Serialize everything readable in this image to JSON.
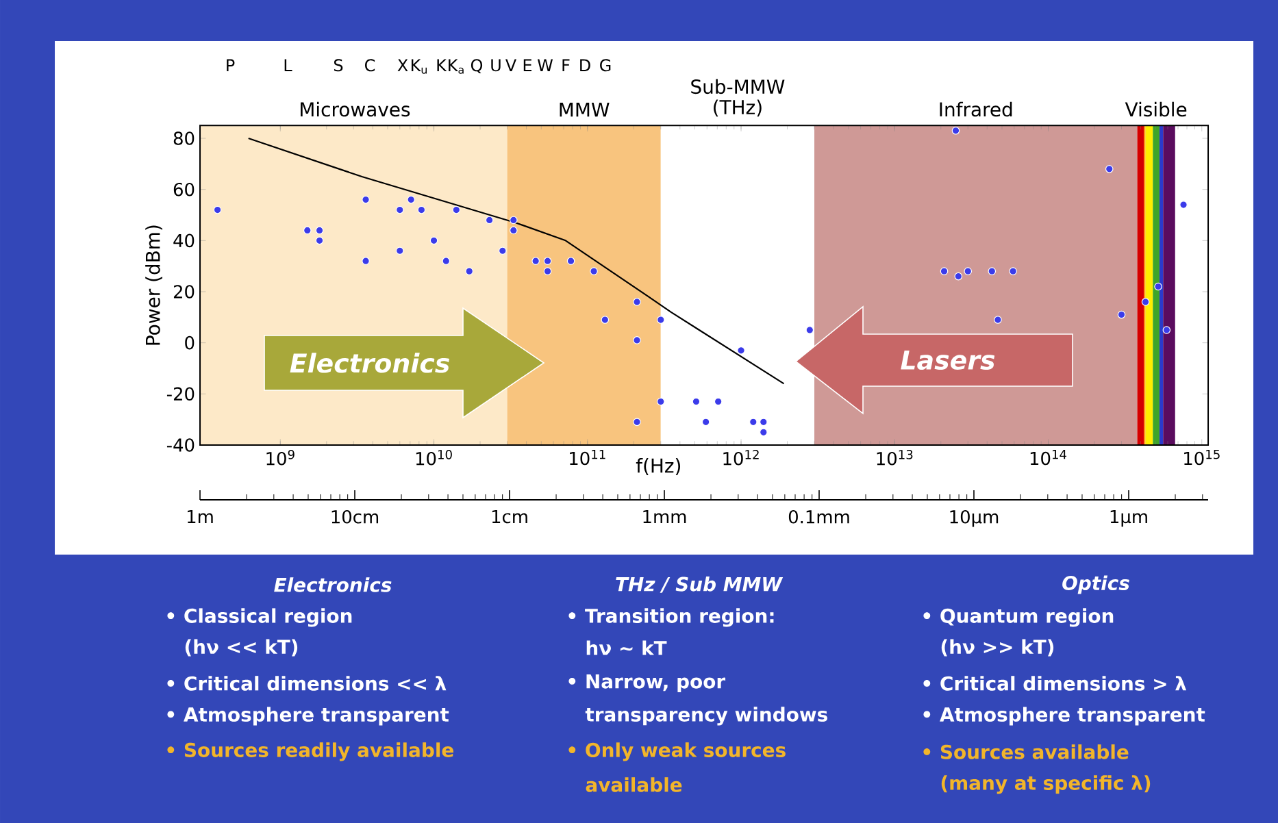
{
  "chart_data": {
    "type": "scatter",
    "xlabel": "f(Hz)",
    "ylabel": "Power (dBm)",
    "log": "x",
    "marker": "circle",
    "xlim": [
      300000000.0,
      1100000000000000.0
    ],
    "ylim": [
      -40,
      85
    ],
    "xticks": [
      {
        "value": 1000000000.0,
        "label": "10$^{9}$"
      },
      {
        "value": 10000000000.0,
        "label": "10$^{10}$"
      },
      {
        "value": 100000000000.0,
        "label": "10$^{11}$"
      },
      {
        "value": 1000000000000.0,
        "label": "10$^{12}$"
      },
      {
        "value": 10000000000000.0,
        "label": "10$^{13}$"
      },
      {
        "value": 100000000000000.0,
        "label": "10$^{14}$"
      },
      {
        "value": 1000000000000000.0,
        "label": "10$^{15}$"
      }
    ],
    "yticks": [
      -40,
      -20,
      0,
      20,
      40,
      60,
      80
    ],
    "bands": [
      {
        "axis": "x",
        "from": 300000000.0,
        "to": 30000000000.0,
        "label": "Microwaves",
        "color": "#fde9c8"
      },
      {
        "axis": "x",
        "from": 30000000000.0,
        "to": 300000000000.0,
        "label": "MMW",
        "color": "#f8c47e"
      },
      {
        "axis": "x",
        "from": 300000000000.0,
        "to": 3000000000000.0,
        "label": "Sub-MMW (THz)",
        "color": "#ffffff"
      },
      {
        "axis": "x",
        "from": 3000000000000.0,
        "to": 380000000000000.0,
        "label": "Infrared",
        "color": "#cf9996"
      },
      {
        "axis": "x",
        "from": 380000000000000.0,
        "to": 420000000000000.0,
        "color": "#d40000"
      },
      {
        "axis": "x",
        "from": 420000000000000.0,
        "to": 430000000000000.0,
        "color": "#ff8c00"
      },
      {
        "axis": "x",
        "from": 430000000000000.0,
        "to": 480000000000000.0,
        "color": "#ffee00"
      },
      {
        "axis": "x",
        "from": 480000000000000.0,
        "to": 530000000000000.0,
        "label": "Visible",
        "color": "#3fa52a"
      },
      {
        "axis": "x",
        "from": 530000000000000.0,
        "to": 560000000000000.0,
        "color": "#2a3acb"
      },
      {
        "axis": "x",
        "from": 560000000000000.0,
        "to": 670000000000000.0,
        "color": "#5a0c5e"
      }
    ],
    "series": [
      {
        "type": "scatter",
        "color": "#3b3bea",
        "x": [
          390000000.0,
          1500000000.0,
          1800000000.0,
          1800000000.0,
          3600000000.0,
          3600000000.0,
          6000000000.0,
          6000000000.0,
          7100000000.0,
          8300000000.0,
          10000000000.0,
          12000000000.0,
          14000000000.0,
          17000000000.0,
          23000000000.0,
          28000000000.0,
          33000000000.0,
          33000000000.0,
          46000000000.0,
          55000000000.0,
          55000000000.0,
          78000000000.0,
          110000000000.0,
          210000000000.0,
          130000000000.0,
          210000000000.0,
          300000000000.0,
          300000000000.0,
          210000000000.0,
          510000000000.0,
          590000000000.0,
          710000000000.0,
          1000000000000.0,
          1200000000000.0,
          1400000000000.0,
          1400000000000.0,
          2800000000000.0,
          25000000000000.0,
          21000000000000.0,
          26000000000000.0,
          30000000000000.0,
          43000000000000.0,
          59000000000000.0,
          47000000000000.0,
          250000000000000.0,
          300000000000000.0,
          430000000000000.0,
          520000000000000.0,
          590000000000000.0,
          760000000000000.0
        ],
        "values": [
          52,
          44,
          44,
          40,
          56,
          32,
          52,
          36,
          56,
          52,
          40,
          32,
          52,
          28,
          48,
          36,
          48,
          44,
          32,
          32,
          28,
          32,
          28,
          16,
          9,
          1,
          9,
          -23,
          -31,
          -23,
          -31,
          -23,
          -3,
          -31,
          -31,
          -35,
          5,
          83,
          28,
          26,
          28,
          28,
          28,
          9,
          68,
          11,
          16,
          22,
          5,
          54
        ]
      },
      {
        "type": "line",
        "color": "#000000",
        "marker": "none",
        "x": [
          620000000.0,
          3400000000.0,
          34000000000.0,
          72000000000.0,
          250000000000.0,
          350000000000.0,
          1900000000000.0
        ],
        "values": [
          80,
          65,
          47,
          40,
          18,
          12,
          -16
        ]
      }
    ],
    "annotations": [
      "Electronics",
      "Lasers",
      "P",
      "L",
      "S",
      "C",
      "X",
      "K$_{u}$",
      "K",
      "K$_{a}$",
      "Q",
      "U",
      "V",
      "E",
      "W",
      "F",
      "D",
      "G",
      "1m",
      "10cm",
      "1cm",
      "1mm",
      "0.1mm",
      "10µm",
      "1µm",
      "Electronics",
      "• Classical region",
      "(hν << kT)",
      "• Critical dimensions << λ",
      "• Atmosphere transparent",
      "• Sources readily available",
      "THz / Sub MMW",
      "• Transition region:",
      "hν ~ kT",
      "• Narrow, poor",
      "transparency windows",
      "• Only weak sources",
      "available",
      "Optics",
      "• Quantum region",
      "(hν >> kT)",
      "• Critical dimensions > λ",
      "• Atmosphere transparent",
      "• Sources available",
      "(many at specific λ)"
    ]
  }
}
